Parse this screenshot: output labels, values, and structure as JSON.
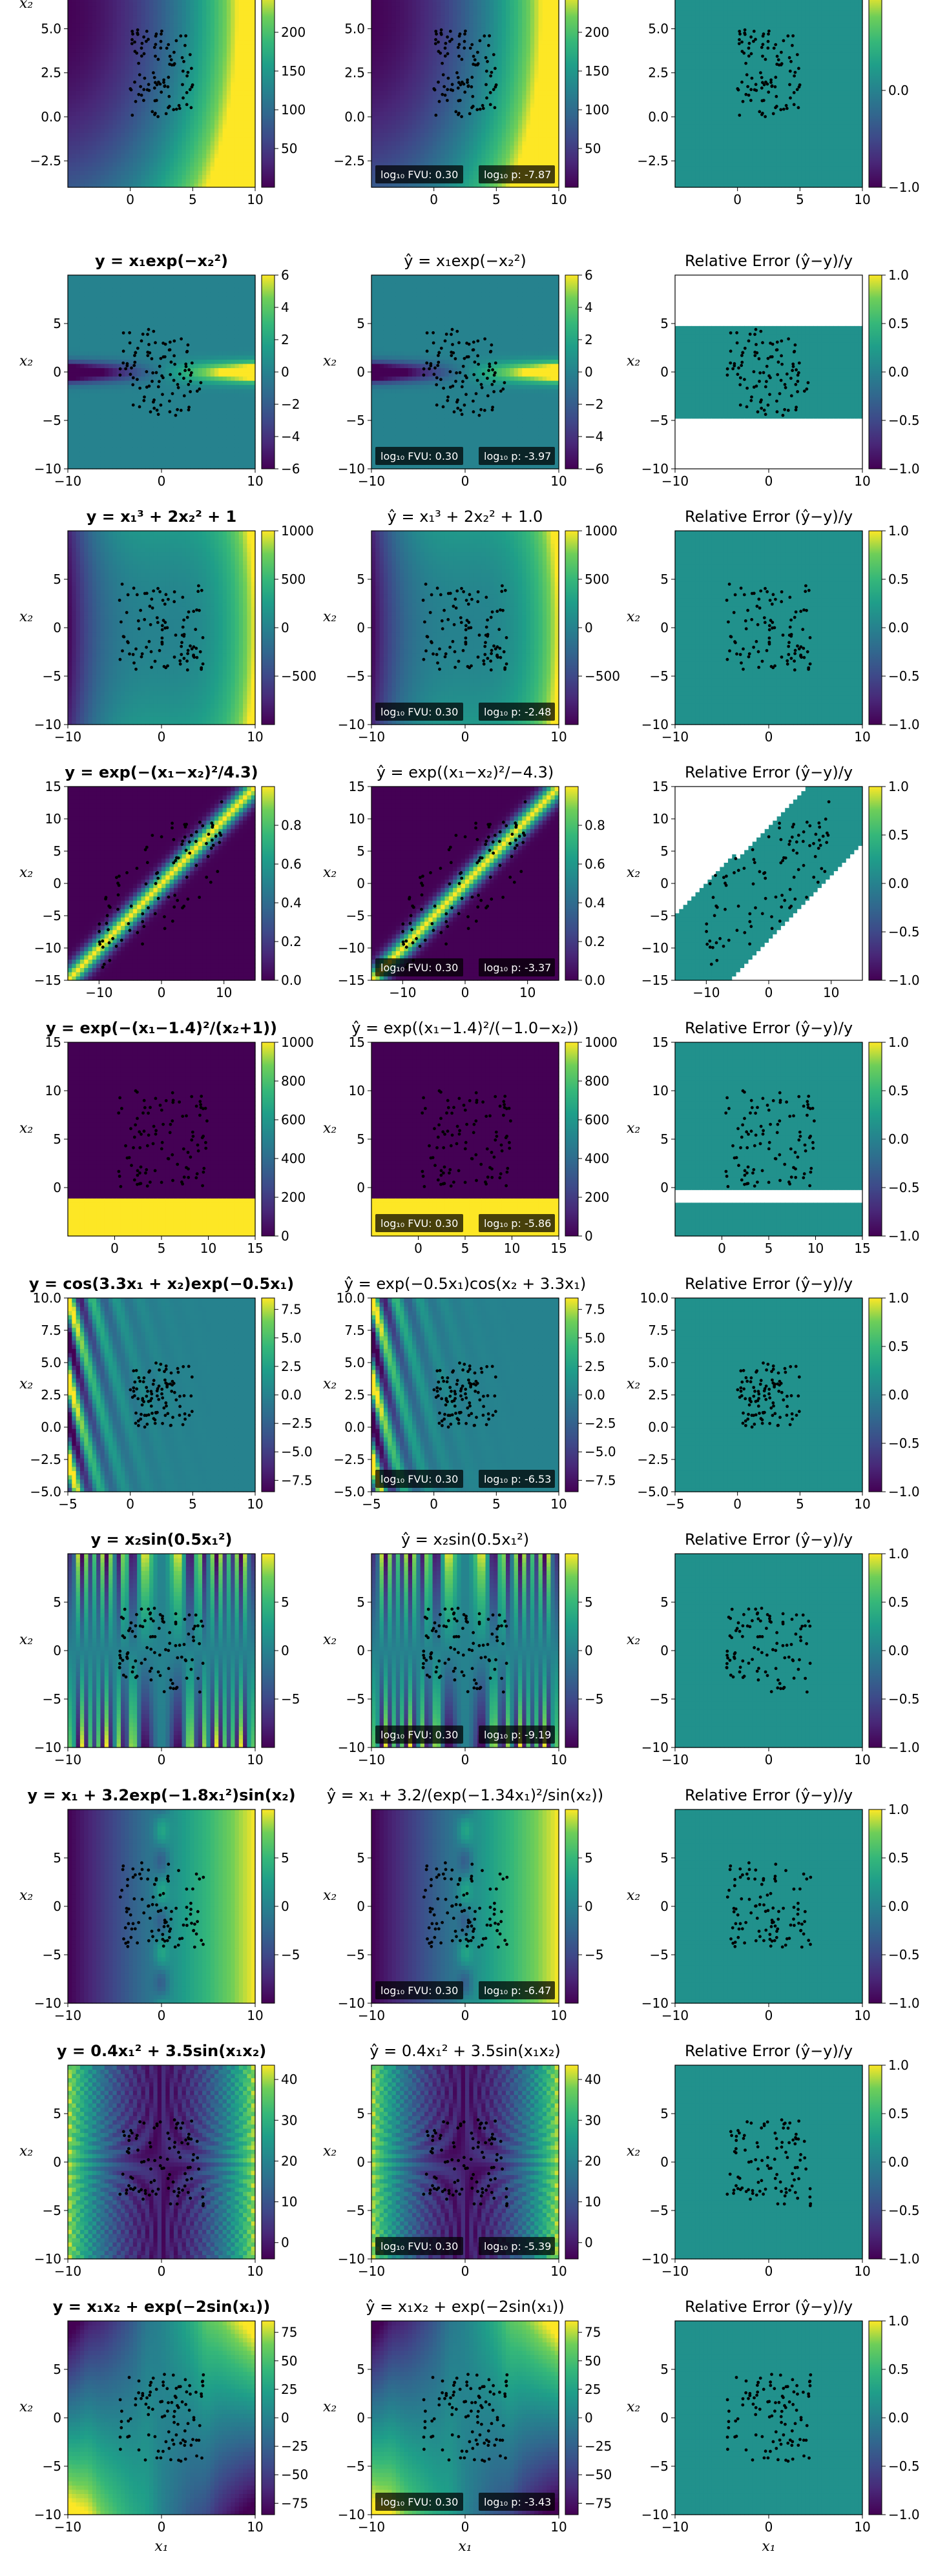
{
  "figure": {
    "x_axis_label": "x₁",
    "y_axis_label": "x₂",
    "colormap": "viridis",
    "colors": {
      "low": "#440154",
      "mid": "#21918c",
      "high": "#fde725"
    }
  },
  "chart_data": [
    {
      "type": "heatmap",
      "row": 0,
      "title": "",
      "pred_title": "",
      "error_title": "",
      "xlim": [
        -5,
        10
      ],
      "ylim": [
        -4,
        7
      ],
      "xticks": [
        0,
        5,
        10
      ],
      "yticks": [
        -2.5,
        0.0,
        2.5,
        5.0
      ],
      "xticklabels": [
        "0",
        "5",
        "10"
      ],
      "yticklabels": [
        "−2.5",
        "0.0",
        "2.5",
        "5.0"
      ],
      "cbar": {
        "min": 0,
        "max": 250,
        "ticks": [
          50,
          100,
          150,
          200
        ],
        "labels": [
          "50",
          "100",
          "150",
          "200"
        ]
      },
      "err_cbar": {
        "min": -1,
        "max": 1,
        "ticks": [
          -1.0,
          0.0
        ],
        "labels": [
          "−1.0",
          "0.0"
        ]
      },
      "fvu": "log₁₀ FVU: 0.30",
      "p": "log₁₀ p: -7.87"
    },
    {
      "type": "heatmap",
      "row": 1,
      "title": "y = x₁exp(−x₂²)",
      "pred_title": "ŷ = x₁exp(−x₂²)",
      "error_title": "Relative Error (ŷ−y)/y",
      "xlim": [
        -10,
        10
      ],
      "ylim": [
        -10,
        10
      ],
      "xticks": [
        -10,
        0,
        10
      ],
      "yticks": [
        -10,
        -5,
        0,
        5
      ],
      "xticklabels": [
        "−10",
        "0",
        "10"
      ],
      "yticklabels": [
        "−10",
        "−5",
        "0",
        "5"
      ],
      "cbar": {
        "min": -6,
        "max": 6,
        "ticks": [
          -6,
          -4,
          -2,
          0,
          2,
          4,
          6
        ],
        "labels": [
          "−6",
          "−4",
          "−2",
          "0",
          "2",
          "4",
          "6"
        ]
      },
      "err_cbar": {
        "min": -1,
        "max": 1,
        "ticks": [
          -1.0,
          -0.5,
          0.0,
          0.5,
          1.0
        ],
        "labels": [
          "−1.0",
          "−0.5",
          "0.0",
          "0.5",
          "1.0"
        ]
      },
      "fvu": "log₁₀ FVU: 0.30",
      "p": "log₁₀ p: -3.97"
    },
    {
      "type": "heatmap",
      "row": 2,
      "title": "y = x₁³ + 2x₂² + 1",
      "pred_title": "ŷ = x₁³ + 2x₂² + 1.0",
      "error_title": "Relative Error (ŷ−y)/y",
      "xlim": [
        -10,
        10
      ],
      "ylim": [
        -10,
        10
      ],
      "xticks": [
        -10,
        0,
        10
      ],
      "yticks": [
        -10,
        -5,
        0,
        5
      ],
      "xticklabels": [
        "−10",
        "0",
        "10"
      ],
      "yticklabels": [
        "−10",
        "−5",
        "0",
        "5"
      ],
      "cbar": {
        "min": -1000,
        "max": 1000,
        "ticks": [
          -500,
          0,
          500,
          1000
        ],
        "labels": [
          "−500",
          "0",
          "500",
          "1000"
        ]
      },
      "err_cbar": {
        "min": -1,
        "max": 1,
        "ticks": [
          -1.0,
          -0.5,
          0.0,
          0.5,
          1.0
        ],
        "labels": [
          "−1.0",
          "−0.5",
          "0.0",
          "0.5",
          "1.0"
        ]
      },
      "fvu": "log₁₀ FVU: 0.30",
      "p": "log₁₀ p: -2.48"
    },
    {
      "type": "heatmap",
      "row": 3,
      "title": "y = exp(−(x₁−x₂)²/4.3)",
      "pred_title": "ŷ = exp((x₁−x₂)²/−4.3)",
      "error_title": "Relative Error (ŷ−y)/y",
      "xlim": [
        -15,
        15
      ],
      "ylim": [
        -15,
        15
      ],
      "xticks": [
        -10,
        0,
        10
      ],
      "yticks": [
        -15,
        -10,
        -5,
        0,
        5,
        10,
        15
      ],
      "xticklabels": [
        "−10",
        "0",
        "10"
      ],
      "yticklabels": [
        "−15",
        "−10",
        "−5",
        "0",
        "5",
        "10",
        "15"
      ],
      "cbar": {
        "min": 0,
        "max": 1,
        "ticks": [
          0.0,
          0.2,
          0.4,
          0.6,
          0.8
        ],
        "labels": [
          "0.0",
          "0.2",
          "0.4",
          "0.6",
          "0.8"
        ]
      },
      "err_cbar": {
        "min": -1,
        "max": 1,
        "ticks": [
          -1.0,
          -0.5,
          0.0,
          0.5,
          1.0
        ],
        "labels": [
          "−1.0",
          "−0.5",
          "0.0",
          "0.5",
          "1.0"
        ]
      },
      "fvu": "log₁₀ FVU: 0.30",
      "p": "log₁₀ p: -3.37"
    },
    {
      "type": "heatmap",
      "row": 4,
      "title": "y = exp(−(x₁−1.4)²/(x₂+1))",
      "pred_title": "ŷ = exp((x₁−1.4)²/(−1.0−x₂))",
      "error_title": "Relative Error (ŷ−y)/y",
      "xlim": [
        -5,
        15
      ],
      "ylim": [
        -5,
        15
      ],
      "xticks": [
        0,
        5,
        10,
        15
      ],
      "yticks": [
        0,
        5,
        10,
        15
      ],
      "xticklabels": [
        "0",
        "5",
        "10",
        "15"
      ],
      "yticklabels": [
        "0",
        "5",
        "10",
        "15"
      ],
      "cbar": {
        "min": 0,
        "max": 1000,
        "ticks": [
          0,
          200,
          400,
          600,
          800,
          1000
        ],
        "labels": [
          "0",
          "200",
          "400",
          "600",
          "800",
          "1000"
        ]
      },
      "err_cbar": {
        "min": -1,
        "max": 1,
        "ticks": [
          -1.0,
          -0.5,
          0.0,
          0.5,
          1.0
        ],
        "labels": [
          "−1.0",
          "−0.5",
          "0.0",
          "0.5",
          "1.0"
        ]
      },
      "fvu": "log₁₀ FVU: 0.30",
      "p": "log₁₀ p: -5.86"
    },
    {
      "type": "heatmap",
      "row": 5,
      "title": "y = cos(3.3x₁ + x₂)exp(−0.5x₁)",
      "pred_title": "ŷ = exp(−0.5x₁)cos(x₂ + 3.3x₁)",
      "error_title": "Relative Error (ŷ−y)/y",
      "xlim": [
        -5,
        10
      ],
      "ylim": [
        -5,
        10
      ],
      "xticks": [
        -5,
        0,
        5,
        10
      ],
      "yticks": [
        -5.0,
        -2.5,
        0.0,
        2.5,
        5.0,
        7.5,
        10.0
      ],
      "xticklabels": [
        "−5",
        "0",
        "5",
        "10"
      ],
      "yticklabels": [
        "−5.0",
        "−2.5",
        "0.0",
        "2.5",
        "5.0",
        "7.5",
        "10.0"
      ],
      "cbar": {
        "min": -8.5,
        "max": 8.5,
        "ticks": [
          -7.5,
          -5.0,
          -2.5,
          0.0,
          2.5,
          5.0,
          7.5
        ],
        "labels": [
          "−7.5",
          "−5.0",
          "−2.5",
          "0.0",
          "2.5",
          "5.0",
          "7.5"
        ]
      },
      "err_cbar": {
        "min": -1,
        "max": 1,
        "ticks": [
          -1.0,
          -0.5,
          0.0,
          0.5,
          1.0
        ],
        "labels": [
          "−1.0",
          "−0.5",
          "0.0",
          "0.5",
          "1.0"
        ]
      },
      "fvu": "log₁₀ FVU: 0.30",
      "p": "log₁₀ p: -6.53"
    },
    {
      "type": "heatmap",
      "row": 6,
      "title": "y = x₂sin(0.5x₁²)",
      "pred_title": "ŷ = x₂sin(0.5x₁²)",
      "error_title": "Relative Error (ŷ−y)/y",
      "xlim": [
        -10,
        10
      ],
      "ylim": [
        -10,
        10
      ],
      "xticks": [
        -10,
        0,
        10
      ],
      "yticks": [
        -10,
        -5,
        0,
        5
      ],
      "xticklabels": [
        "−10",
        "0",
        "10"
      ],
      "yticklabels": [
        "−10",
        "−5",
        "0",
        "5"
      ],
      "cbar": {
        "min": -10,
        "max": 10,
        "ticks": [
          -5,
          0,
          5
        ],
        "labels": [
          "−5",
          "0",
          "5"
        ]
      },
      "err_cbar": {
        "min": -1,
        "max": 1,
        "ticks": [
          -1.0,
          -0.5,
          0.0,
          0.5,
          1.0
        ],
        "labels": [
          "−1.0",
          "−0.5",
          "0.0",
          "0.5",
          "1.0"
        ]
      },
      "fvu": "log₁₀ FVU: 0.30",
      "p": "log₁₀ p: -9.19"
    },
    {
      "type": "heatmap",
      "row": 7,
      "title": "y = x₁ + 3.2exp(−1.8x₁²)sin(x₂)",
      "pred_title": "ŷ = x₁ + 3.2/(exp(−1.34x₁)²/sin(x₂))",
      "error_title": "Relative Error (ŷ−y)/y",
      "xlim": [
        -10,
        10
      ],
      "ylim": [
        -10,
        10
      ],
      "xticks": [
        -10,
        0,
        10
      ],
      "yticks": [
        -10,
        -5,
        0,
        5
      ],
      "xticklabels": [
        "−10",
        "0",
        "10"
      ],
      "yticklabels": [
        "−10",
        "−5",
        "0",
        "5"
      ],
      "cbar": {
        "min": -10,
        "max": 10,
        "ticks": [
          -5,
          0,
          5
        ],
        "labels": [
          "−5",
          "0",
          "5"
        ]
      },
      "err_cbar": {
        "min": -1,
        "max": 1,
        "ticks": [
          -1.0,
          -0.5,
          0.0,
          0.5,
          1.0
        ],
        "labels": [
          "−1.0",
          "−0.5",
          "0.0",
          "0.5",
          "1.0"
        ]
      },
      "fvu": "log₁₀ FVU: 0.30",
      "p": "log₁₀ p: -6.47"
    },
    {
      "type": "heatmap",
      "row": 8,
      "title": "y = 0.4x₁² + 3.5sin(x₁x₂)",
      "pred_title": "ŷ = 0.4x₁² + 3.5sin(x₁x₂)",
      "error_title": "Relative Error (ŷ−y)/y",
      "xlim": [
        -10,
        10
      ],
      "ylim": [
        -10,
        10
      ],
      "xticks": [
        -10,
        0,
        10
      ],
      "yticks": [
        -10,
        -5,
        0,
        5
      ],
      "xticklabels": [
        "−10",
        "0",
        "10"
      ],
      "yticklabels": [
        "−10",
        "−5",
        "0",
        "5"
      ],
      "cbar": {
        "min": -4,
        "max": 43.5,
        "ticks": [
          0,
          10,
          20,
          30,
          40
        ],
        "labels": [
          "0",
          "10",
          "20",
          "30",
          "40"
        ]
      },
      "err_cbar": {
        "min": -1,
        "max": 1,
        "ticks": [
          -1.0,
          -0.5,
          0.0,
          0.5,
          1.0
        ],
        "labels": [
          "−1.0",
          "−0.5",
          "0.0",
          "0.5",
          "1.0"
        ]
      },
      "fvu": "log₁₀ FVU: 0.30",
      "p": "log₁₀ p: -5.39"
    },
    {
      "type": "heatmap",
      "row": 9,
      "title": "y = x₁x₂ + exp(−2sin(x₁))",
      "pred_title": "ŷ = x₁x₂ + exp(−2sin(x₁))",
      "error_title": "Relative Error (ŷ−y)/y",
      "xlim": [
        -10,
        10
      ],
      "ylim": [
        -10,
        10
      ],
      "xticks": [
        -10,
        0,
        10
      ],
      "yticks": [
        -10,
        -5,
        0,
        5
      ],
      "xticklabels": [
        "−10",
        "0",
        "10"
      ],
      "yticklabels": [
        "−10",
        "−5",
        "0",
        "5"
      ],
      "cbar": {
        "min": -85,
        "max": 85,
        "ticks": [
          -75,
          -50,
          -25,
          0,
          25,
          50,
          75
        ],
        "labels": [
          "−75",
          "−50",
          "−25",
          "0",
          "25",
          "50",
          "75"
        ]
      },
      "err_cbar": {
        "min": -1,
        "max": 1,
        "ticks": [
          -1.0,
          -0.5,
          0.0,
          0.5,
          1.0
        ],
        "labels": [
          "−1.0",
          "−0.5",
          "0.0",
          "0.5",
          "1.0"
        ]
      },
      "fvu": "log₁₀ FVU: 0.30",
      "p": "log₁₀ p: -3.43"
    }
  ]
}
